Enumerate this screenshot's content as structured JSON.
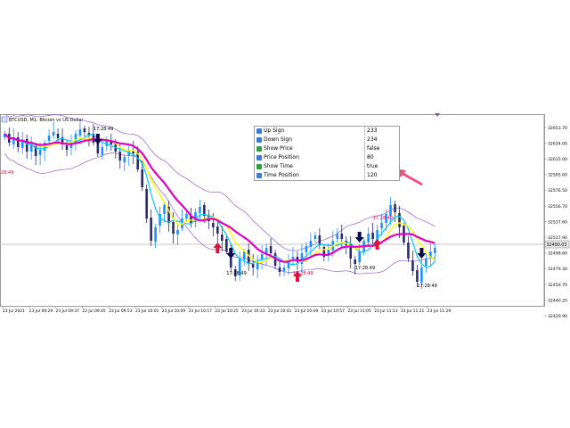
{
  "symbol_label": "BTCUSD, M1: Bitcoin vs US Dollar",
  "price_axis": [
    "32653.70",
    "32634.00",
    "32615.00",
    "32595.60",
    "32576.50",
    "32556.70",
    "32537.60",
    "32517.90",
    "32498.60",
    "32479.30",
    "32459.70",
    "32440.20",
    "32420.90"
  ],
  "current_price": "32490.03",
  "time_axis": [
    "23 Jul 2021",
    "23 Jul 09:29",
    "23 Jul 09:37",
    "23 Jul 09:45",
    "23 Jul 09:53",
    "23 Jul 10:01",
    "23 Jul 10:09",
    "23 Jul 10:17",
    "23 Jul 10:25",
    "23 Jul 10:33",
    "23 Jul 10:41",
    "23 Jul 10:49",
    "23 Jul 10:57",
    "23 Jul 11:05",
    "23 Jul 11:13",
    "23 Jul 11:21",
    "23 Jul 11:29"
  ],
  "signal_time_labels": [
    "17:28:49",
    "17:28:49",
    "17:28:49",
    "17:28:49",
    "17:28:49",
    "17:28:49"
  ],
  "left_edge_label": "28:49",
  "inputs_table": [
    {
      "name": "Up Sign",
      "value": "233",
      "icon": "blue-param-icon"
    },
    {
      "name": "Down Sign",
      "value": "234",
      "icon": "blue-param-icon"
    },
    {
      "name": "Show Price",
      "value": "false",
      "icon": "green-bool-icon"
    },
    {
      "name": "Price Position",
      "value": "80",
      "icon": "blue-param-icon"
    },
    {
      "name": "Show Time",
      "value": "true",
      "icon": "green-bool-icon"
    },
    {
      "name": "Time Position",
      "value": "120",
      "icon": "blue-param-icon"
    }
  ],
  "colors": {
    "bull_candle": "#1e90ff",
    "bear_candle": "#2b2b6b",
    "ma_fast": "#ffff00",
    "ma_mid": "#00c8ff",
    "ma_slow": "#e000c0",
    "bands": "#9b5bd6",
    "up_arrow": "#e0103a",
    "down_arrow": "#0a0a4a",
    "callout_arrow": "#f0507a"
  }
}
